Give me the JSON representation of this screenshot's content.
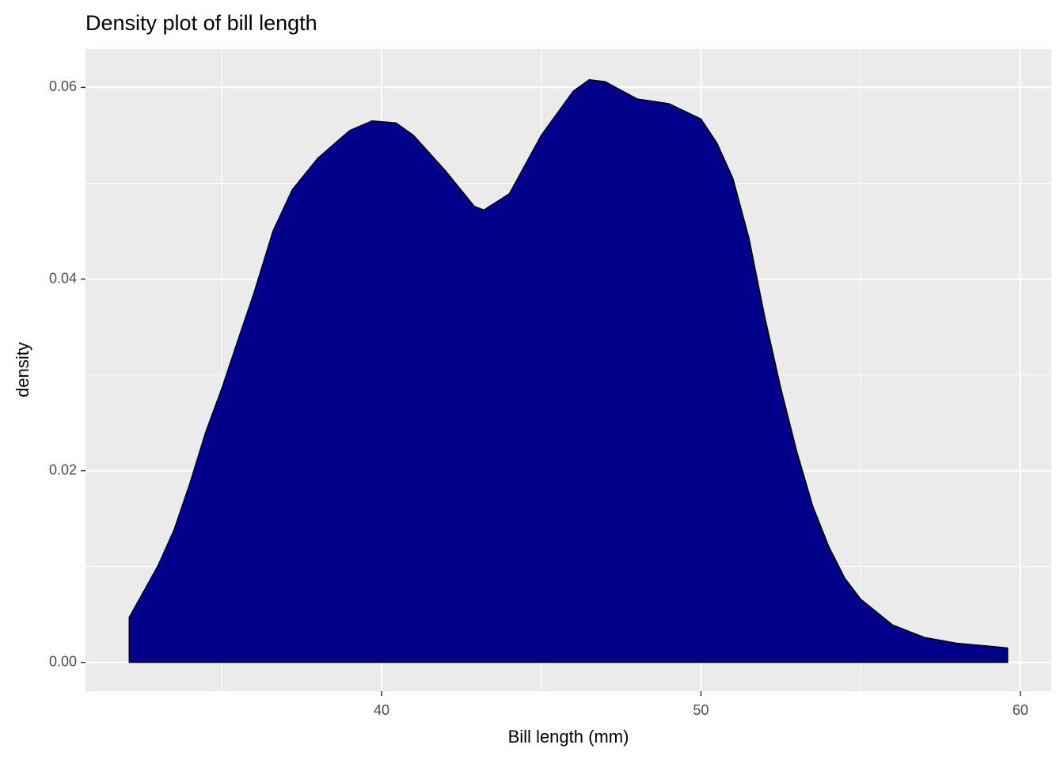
{
  "chart_data": {
    "type": "area",
    "title": "Density plot of bill length",
    "xlabel": "Bill length (mm)",
    "ylabel": "density",
    "x": [
      32.1,
      33,
      33.5,
      34,
      34.5,
      35,
      35.5,
      36,
      36.6,
      37.2,
      38,
      39,
      39.7,
      40.45,
      41,
      42,
      42.9,
      43.2,
      44,
      45,
      46,
      46.5,
      47,
      48,
      49,
      50,
      50.5,
      51,
      51.5,
      52,
      52.5,
      53,
      53.5,
      54,
      54.5,
      55,
      56,
      57,
      58,
      59,
      59.6
    ],
    "values": [
      0.0047,
      0.0101,
      0.0138,
      0.0187,
      0.0241,
      0.0286,
      0.0336,
      0.0385,
      0.045,
      0.0493,
      0.0526,
      0.0555,
      0.0565,
      0.0563,
      0.055,
      0.0513,
      0.0476,
      0.0472,
      0.0489,
      0.055,
      0.0596,
      0.0608,
      0.0606,
      0.0588,
      0.0583,
      0.0567,
      0.0542,
      0.0505,
      0.0443,
      0.036,
      0.0286,
      0.022,
      0.0163,
      0.0121,
      0.0088,
      0.0066,
      0.0039,
      0.0026,
      0.002,
      0.0017,
      0.0015
    ],
    "color": "#00008b",
    "outline_color": "#000000",
    "xlim": [
      30.73,
      60.97
    ],
    "ylim": [
      -0.003,
      0.064
    ],
    "xticks": [
      40,
      50,
      60
    ],
    "yticks": [
      {
        "value": 0,
        "label": "0.00"
      },
      0.02,
      0.04,
      0.06
    ],
    "x_minor_breaks": [
      35,
      45,
      55
    ],
    "y_minor_breaks": [
      0.01,
      0.03,
      0.05
    ],
    "grid": true
  }
}
